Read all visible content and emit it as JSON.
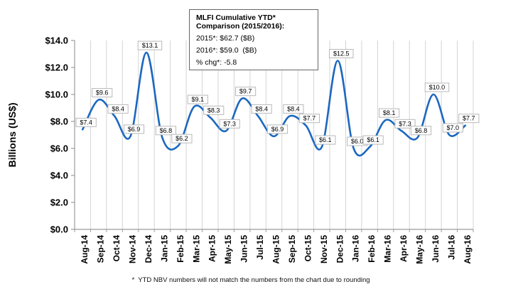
{
  "chart_data": {
    "type": "line",
    "title": "",
    "xlabel": "",
    "ylabel": "Billions (US$)",
    "ylim": [
      0,
      14
    ],
    "ytick_step": 2,
    "ytick_labels": [
      "$0.0",
      "$2.0",
      "$4.0",
      "$6.0",
      "$8.0",
      "$10.0",
      "$12.0",
      "$14.0"
    ],
    "grid": "vertical-only",
    "smoothed": true,
    "legend": "none",
    "categories": [
      "Aug-14",
      "Sep-14",
      "Oct-14",
      "Nov-14",
      "Dec-14",
      "Jan-15",
      "Feb-15",
      "Mar-15",
      "Apr-15",
      "May-15",
      "Jun-15",
      "Jul-15",
      "Aug-15",
      "Sep-15",
      "Oct-15",
      "Nov-15",
      "Dec-15",
      "Jan-16",
      "Feb-16",
      "Mar-16",
      "Apr-16",
      "May-16",
      "Jun-16",
      "Jul-16",
      "Aug-16"
    ],
    "values": [
      7.4,
      9.6,
      8.4,
      6.9,
      13.1,
      6.8,
      6.2,
      9.1,
      8.3,
      7.3,
      9.7,
      8.4,
      6.9,
      8.4,
      7.7,
      6.1,
      12.5,
      6.0,
      6.1,
      8.1,
      7.3,
      6.8,
      10.0,
      7.0,
      7.7
    ],
    "point_labels": [
      "$7.4",
      "$9.6",
      "$8.4",
      "$6.9",
      "$13.1",
      "$6.8",
      "$6.2",
      "$9.1",
      "$8.3",
      "$7.3",
      "$9.7",
      "$8.4",
      "$6.9",
      "$8.4",
      "$7.7",
      "$6.1",
      "$12.5",
      "$6.0",
      "$6.1",
      "$8.1",
      "$7.3",
      "$6.8",
      "$10.0",
      "$7.0",
      "$7.7"
    ],
    "line_color": "#1B68C0",
    "grid_color": "#d4d4d4",
    "axis_color": "#9b9b9b",
    "label_box_border": "#b8b8b8",
    "text_color": "#000000"
  },
  "annotation_box": {
    "title_line1": "MLFI Cumulative YTD*",
    "title_line2": "Comparison (2015/2016):",
    "lines": [
      "2015*: $62.7 ($B)",
      "2016*: $59.0  ($B)",
      "% chg*: -5.8"
    ]
  },
  "footnote": "*  YTD NBV numbers will not match the numbers from the chart due to rounding"
}
